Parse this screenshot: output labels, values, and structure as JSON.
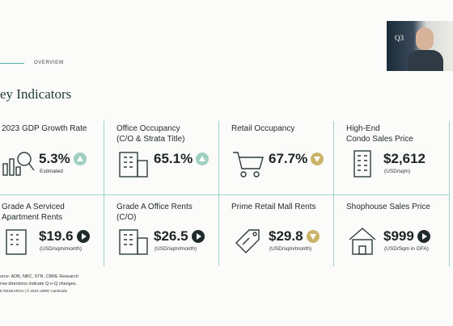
{
  "header": {
    "section": "OVERVIEW",
    "title": "ey Indicators"
  },
  "video": {
    "label": "Q3"
  },
  "cards": [
    {
      "title": "2023 GDP Growth Rate",
      "value": "5.3%",
      "note": "Estimated"
    },
    {
      "title": "Office Occupancy\n(C/O & Strata Title)",
      "value": "65.1%"
    },
    {
      "title": "Retail Occupancy",
      "value": "67.7%"
    },
    {
      "title": "High-End\nCondo Sales Price",
      "value": "$2,612",
      "note": "(USD/sqm)"
    },
    {
      "title": "Grade A Serviced\nApartment Rents",
      "value": "$19.6",
      "note": "(USD/sqm/month)"
    },
    {
      "title": "Grade A Office Rents\n(C/O)",
      "value": "$26.5",
      "note": "(USD/sqm/month)"
    },
    {
      "title": "Prime Retail Mall Rents",
      "value": "$29.8",
      "note": "(USD/sqm/month)"
    },
    {
      "title": "Shophouse Sales Price",
      "value": "$999",
      "note": "(USD/Sqm in GFA)"
    }
  ],
  "footer": [
    "urce: ADB, NBC, STR, CBRE Research",
    "row directions indicate Q-o-Q changes.",
    "E RESEARCH | © 2023 CBRE Cambodia"
  ]
}
